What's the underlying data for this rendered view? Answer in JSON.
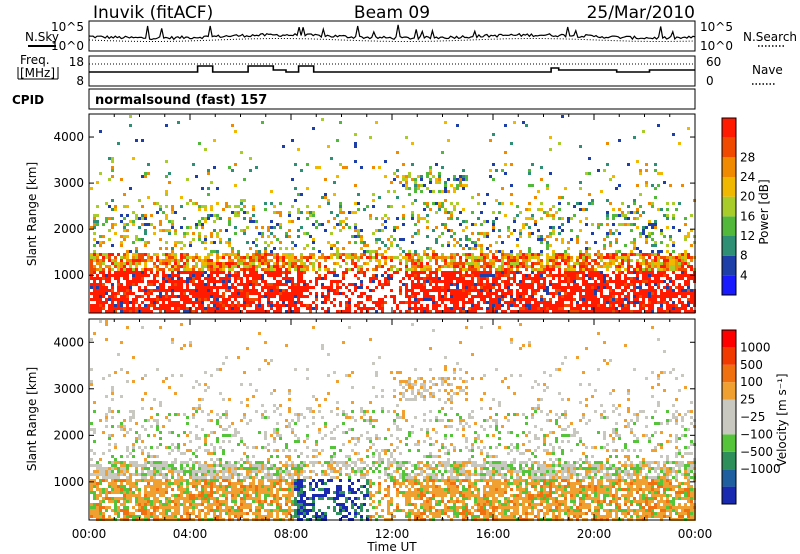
{
  "header": {
    "station": "Inuvik (fitACF)",
    "beam": "Beam 09",
    "date": "25/Mar/2010"
  },
  "noise_panel": {
    "left_label": "N.Sky",
    "right_label": "N.Search",
    "y_top_label": "10^5",
    "y_bottom_label": "10^0"
  },
  "freq_panel": {
    "left_label_line1": "Freq.",
    "left_label_line2": "[MHz]",
    "left_ticks": [
      "8",
      "18"
    ],
    "right_label": "Nave",
    "right_ticks": [
      "0",
      "60"
    ]
  },
  "cpid": {
    "label": "CPID",
    "value": "normalsound (fast) 157"
  },
  "chart_data": [
    {
      "type": "heatmap",
      "name": "power",
      "ylabel": "Slant Range [km]",
      "xlabel": "",
      "x_ticks": [
        "00:00",
        "04:00",
        "08:00",
        "12:00",
        "16:00",
        "20:00",
        "00:00"
      ],
      "y_ticks": [
        1000,
        2000,
        3000,
        4000
      ],
      "ylim": [
        180,
        4500
      ],
      "xlim_hours": [
        0,
        24
      ],
      "colorbar": {
        "label": "Power [dB]",
        "ticks": [
          "4",
          "8",
          "12",
          "16",
          "20",
          "24",
          "28"
        ],
        "colors": [
          "#1a1aff",
          "#1f3fa8",
          "#2f8f74",
          "#52b83c",
          "#a8cc2a",
          "#f0b800",
          "#f08a00",
          "#f04a00",
          "#ff1a00"
        ]
      }
    },
    {
      "type": "heatmap",
      "name": "velocity",
      "ylabel": "Slant Range [km]",
      "xlabel": "Time UT",
      "x_ticks": [
        "00:00",
        "04:00",
        "08:00",
        "12:00",
        "16:00",
        "20:00",
        "00:00"
      ],
      "y_ticks": [
        1000,
        2000,
        3000,
        4000
      ],
      "ylim": [
        180,
        4500
      ],
      "xlim_hours": [
        0,
        24
      ],
      "colorbar": {
        "label": "Velocity [m s⁻¹]",
        "ticks": [
          "1000",
          "500",
          "100",
          "25",
          "−25",
          "−100",
          "−500",
          "−1000"
        ],
        "colors": [
          "#1a2ab0",
          "#1f5fa0",
          "#2f8f5a",
          "#55c43a",
          "#c8c8c0",
          "#c8c8c0",
          "#f0a030",
          "#f07010",
          "#f03a00",
          "#ff0000"
        ]
      }
    }
  ]
}
